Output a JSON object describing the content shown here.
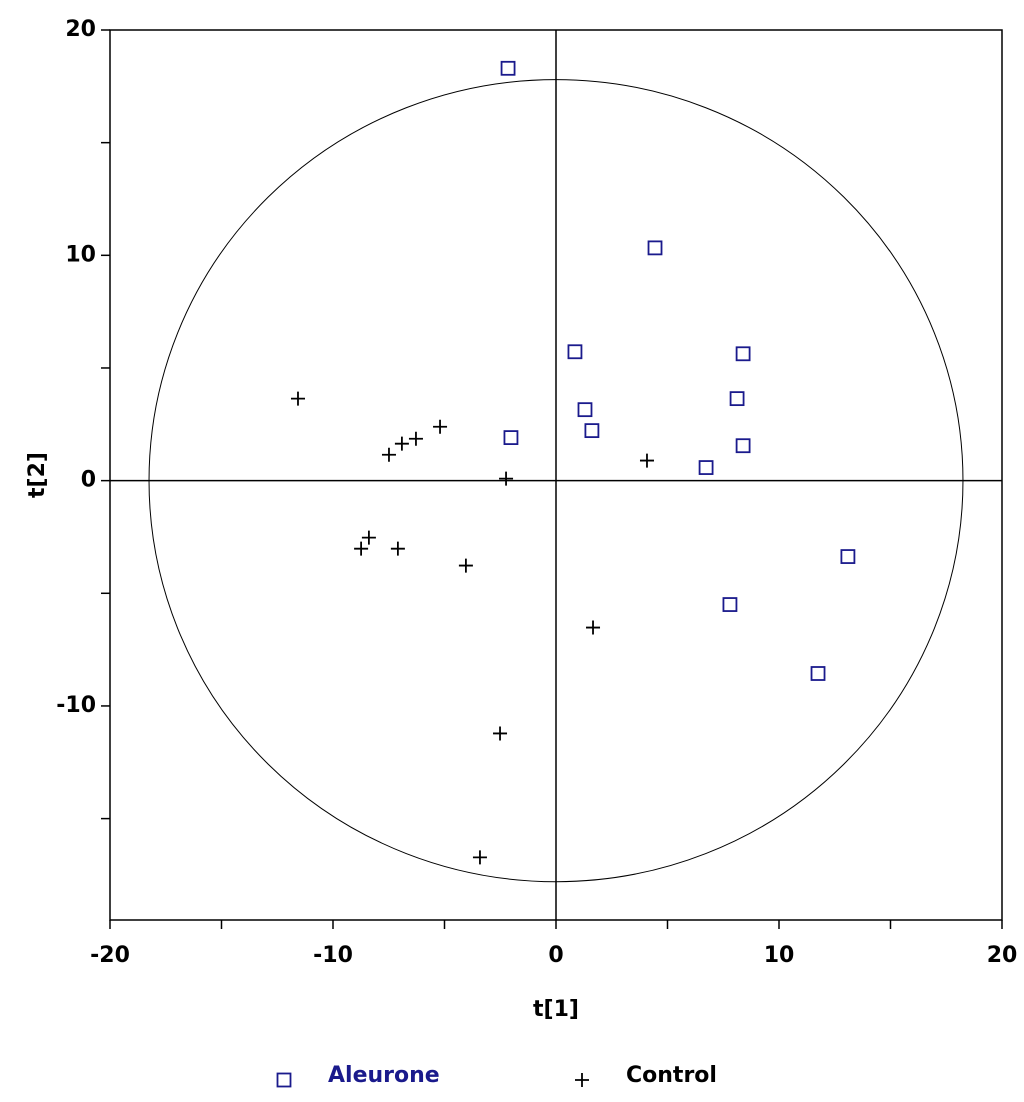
{
  "chart_data": {
    "type": "scatter",
    "x_label": "t[1]",
    "y_label": "t[2]",
    "xlim": [
      -20,
      20
    ],
    "ylim": [
      -19.5,
      20
    ],
    "xticks": [
      -20,
      -10,
      0,
      10,
      20
    ],
    "yticks": [
      -10,
      0,
      10,
      20
    ],
    "zero_lines": true,
    "ellipse_radii": [
      18.25,
      17.8
    ],
    "legend": "bottom",
    "series": [
      {
        "name": "Aleurone",
        "color": "#1a1a8c",
        "marker": "square",
        "x": [
          -2.15,
          4.44,
          0.85,
          8.39,
          8.12,
          1.3,
          1.61,
          -2.02,
          8.39,
          6.73,
          13.09,
          7.8,
          11.75
        ],
        "values": [
          18.3,
          10.33,
          5.72,
          5.63,
          3.64,
          3.15,
          2.22,
          1.91,
          1.55,
          0.58,
          -3.37,
          -5.5,
          -8.56
        ]
      },
      {
        "name": "Control",
        "color": "#000000",
        "marker": "plus",
        "x": [
          -11.57,
          -7.49,
          -6.91,
          -6.28,
          -5.2,
          -2.24,
          4.08,
          -8.74,
          -8.39,
          -7.09,
          -4.04,
          1.66,
          -2.51,
          -3.41
        ],
        "values": [
          3.64,
          1.15,
          1.64,
          1.86,
          2.39,
          0.09,
          0.89,
          -3.02,
          -2.53,
          -3.02,
          -3.77,
          -6.52,
          -11.22,
          -16.72
        ]
      }
    ]
  }
}
